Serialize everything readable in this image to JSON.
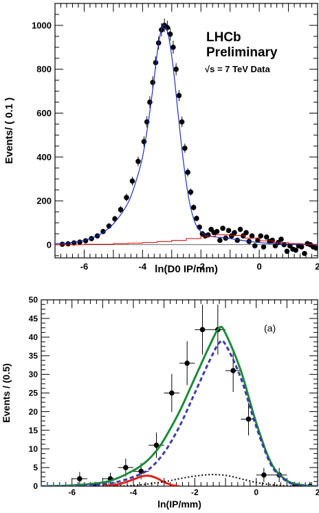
{
  "chart_data": [
    {
      "type": "scatter",
      "xlabel": "ln(D0 IP/mm)",
      "ylabel": "Events/ ( 0.1 )",
      "xlim": [
        -7,
        2
      ],
      "ylim": [
        -60,
        1100
      ],
      "grid": false,
      "xticks": [
        -6,
        -4,
        -2,
        0,
        2
      ],
      "yticks": [
        0,
        200,
        400,
        600,
        800,
        1000
      ],
      "annotations": [
        "LHCb",
        "Preliminary",
        "√s = 7 TeV Data"
      ],
      "series": [
        {
          "kind": "points_with_errors",
          "color": "#000000",
          "x": [
            -6.75,
            -6.55,
            -6.35,
            -6.15,
            -5.95,
            -5.75,
            -5.55,
            -5.35,
            -5.15,
            -4.95,
            -4.75,
            -4.55,
            -4.35,
            -4.15,
            -3.95,
            -3.85,
            -3.75,
            -3.65,
            -3.55,
            -3.45,
            -3.35,
            -3.25,
            -3.15,
            -3.05,
            -2.95,
            -2.85,
            -2.75,
            -2.65,
            -2.55,
            -2.45,
            -2.35,
            -2.25,
            -2.15,
            -2.05,
            -1.95,
            -1.85,
            -1.75,
            -1.65,
            -1.55,
            -1.45,
            -1.35,
            -1.25,
            -1.15,
            -1.05,
            -0.95,
            -0.85,
            -0.75,
            -0.65,
            -0.55,
            -0.45,
            -0.35,
            -0.25,
            -0.15,
            -0.05,
            0.05,
            0.15,
            0.25,
            0.35,
            0.45,
            0.55,
            0.65,
            0.75,
            0.85,
            0.95,
            1.05,
            1.15,
            1.25,
            1.35,
            1.45,
            1.55,
            1.65,
            1.75,
            1.85,
            1.95
          ],
          "y": [
            2,
            4,
            8,
            12,
            18,
            28,
            40,
            60,
            85,
            118,
            160,
            215,
            290,
            380,
            470,
            560,
            650,
            740,
            830,
            920,
            980,
            1000,
            990,
            960,
            900,
            800,
            680,
            560,
            440,
            330,
            240,
            170,
            120,
            80,
            50,
            40,
            45,
            70,
            55,
            60,
            20,
            75,
            30,
            65,
            40,
            55,
            20,
            70,
            40,
            55,
            15,
            40,
            -5,
            20,
            40,
            -10,
            35,
            15,
            20,
            -5,
            10,
            25,
            0,
            -30,
            -5,
            -20,
            -25,
            -5,
            -10,
            -40,
            5,
            0,
            -10,
            -15
          ],
          "errors": [
            5,
            6,
            7,
            8,
            9,
            10,
            11,
            12,
            13,
            14,
            16,
            18,
            20,
            22,
            24,
            26,
            27,
            28,
            29,
            30,
            31,
            31,
            31,
            30,
            30,
            28,
            26,
            24,
            21,
            19,
            16,
            14,
            13,
            11,
            10,
            10,
            10,
            11,
            11,
            11,
            10,
            11,
            10,
            11,
            10,
            11,
            10,
            11,
            10,
            11,
            10,
            10,
            10,
            10,
            10,
            10,
            10,
            10,
            10,
            10,
            10,
            10,
            10,
            10,
            10,
            10,
            10,
            10,
            10,
            10,
            10,
            10,
            10,
            10
          ]
        },
        {
          "kind": "curve",
          "color": "#1a2fbf",
          "description_in_legend": "",
          "x": [
            -7,
            -6.5,
            -6,
            -5.5,
            -5,
            -4.5,
            -4.2,
            -4,
            -3.8,
            -3.6,
            -3.5,
            -3.4,
            -3.3,
            -3.2,
            -3.1,
            -3,
            -2.9,
            -2.8,
            -2.6,
            -2.4,
            -2.2,
            -2,
            -1.8,
            -1.5,
            -1.2,
            -1,
            -0.5,
            0,
            0.5,
            1,
            1.5,
            2
          ],
          "y": [
            4,
            9,
            20,
            44,
            95,
            190,
            300,
            400,
            560,
            760,
            870,
            955,
            1000,
            990,
            945,
            860,
            750,
            620,
            380,
            200,
            100,
            60,
            42,
            35,
            32,
            28,
            18,
            10,
            5,
            3,
            1,
            0
          ]
        },
        {
          "kind": "step",
          "color": "#dd0000",
          "x": [
            -7,
            -6,
            -5,
            -4.5,
            -4,
            -3.5,
            -3,
            -2.5,
            -2,
            -1.5,
            -1,
            -0.5,
            0,
            0.5,
            1,
            1.5,
            2
          ],
          "y": [
            0,
            2,
            5,
            7,
            10,
            14,
            20,
            28,
            38,
            45,
            42,
            30,
            18,
            10,
            5,
            2,
            1
          ]
        }
      ]
    },
    {
      "type": "scatter",
      "xlabel": "ln(IP/mm)",
      "ylabel": "Events / (0.5)",
      "xlim": [
        -7,
        2
      ],
      "ylim": [
        0,
        50
      ],
      "grid": false,
      "xticks": [
        -6,
        -4,
        -2,
        0,
        2
      ],
      "yticks": [
        0,
        5,
        10,
        15,
        20,
        25,
        30,
        35,
        40,
        45,
        50
      ],
      "annotations": [
        "(a)"
      ],
      "series": [
        {
          "kind": "points_with_errors",
          "color": "#000000",
          "x": [
            -5.75,
            -5.25,
            -4.75,
            -4.25,
            -3.75,
            -3.25,
            -2.75,
            -2.25,
            -1.75,
            -1.25,
            -0.75,
            -0.25,
            0.25,
            0.75,
            1.25,
            1.75
          ],
          "y": [
            2,
            0,
            2,
            5,
            4,
            11,
            25,
            33,
            42,
            42,
            31,
            18,
            3,
            3,
            0,
            0
          ],
          "errors": [
            1.8,
            1.2,
            1.6,
            2.4,
            2.2,
            3.4,
            5.1,
            5.9,
            6.7,
            6.7,
            5.7,
            4.4,
            1.9,
            1.9,
            1.2,
            1.2
          ]
        },
        {
          "kind": "curve",
          "color": "#1a8a3a",
          "x": [
            -7,
            -6,
            -5,
            -4.5,
            -4,
            -3.75,
            -3.5,
            -3.25,
            -3,
            -2.5,
            -2,
            -1.5,
            -1.2,
            -1,
            -0.5,
            0,
            0.5,
            1,
            1.5,
            2
          ],
          "y": [
            0,
            0.2,
            1,
            2.2,
            4.2,
            5.5,
            7.2,
            9.5,
            12.5,
            20,
            29,
            38,
            42.5,
            41,
            31,
            17,
            6,
            1.5,
            0.3,
            0
          ]
        },
        {
          "kind": "dashed_curve",
          "color": "#3a3aaa",
          "x": [
            -7,
            -6,
            -5,
            -4.5,
            -4,
            -3.5,
            -3,
            -2.5,
            -2,
            -1.5,
            -1.2,
            -1,
            -0.5,
            0,
            0.5,
            1,
            1.5,
            2
          ],
          "y": [
            0,
            0,
            0.5,
            1.2,
            2.5,
            4.5,
            9,
            16,
            25,
            34,
            38.5,
            38,
            29,
            16,
            5.5,
            1.3,
            0.2,
            0
          ]
        },
        {
          "kind": "curve",
          "color": "#e0201a",
          "x": [
            -5,
            -4.5,
            -4,
            -3.75,
            -3.5,
            -3.25,
            -3,
            -2.75,
            -2.5
          ],
          "y": [
            0,
            0.5,
            1.8,
            2.6,
            2.8,
            2.2,
            1.1,
            0.3,
            0
          ]
        },
        {
          "kind": "dotted_curve",
          "color": "#000000",
          "x": [
            -5,
            -4,
            -3,
            -2.5,
            -2,
            -1.5,
            -1,
            -0.5,
            0,
            0.5,
            1,
            1.5
          ],
          "y": [
            0,
            0.2,
            1.2,
            2,
            2.7,
            3.1,
            2.9,
            2,
            1,
            0.4,
            0.1,
            0
          ]
        }
      ]
    }
  ]
}
